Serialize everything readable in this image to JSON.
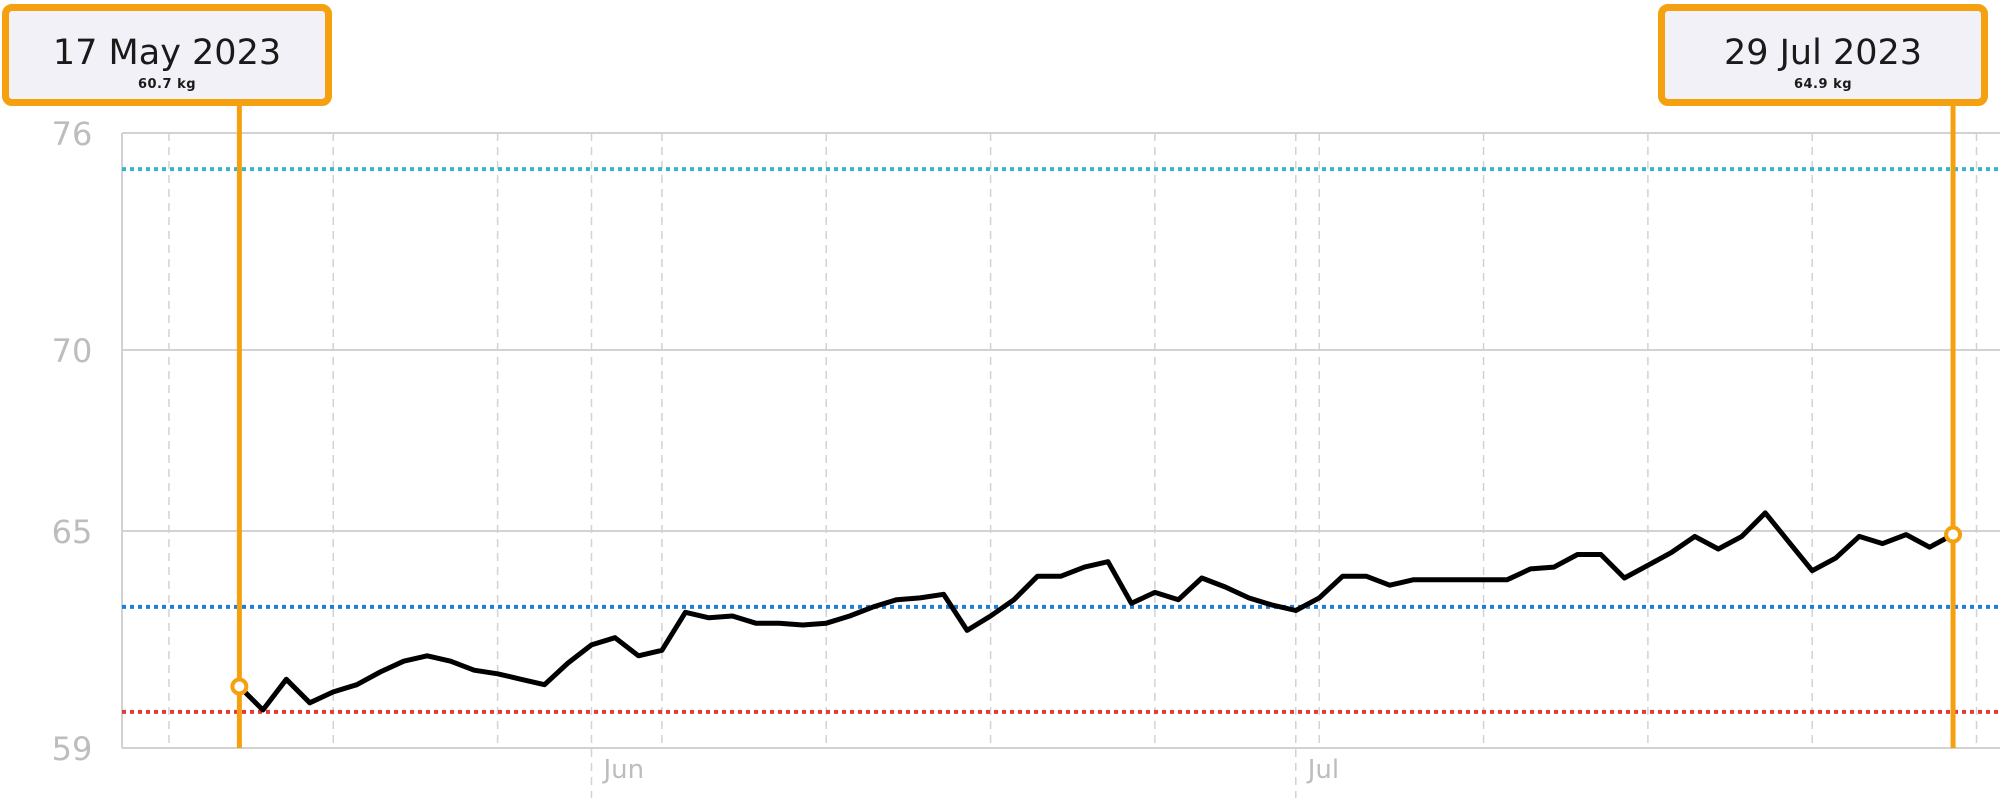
{
  "colors": {
    "accent": "#f5a00f",
    "line": "#000000",
    "grid": "#d2d2d2",
    "axis_text": "#bdbdbd",
    "ref_upper": "#3ab3c9",
    "ref_mid": "#1f7fd6",
    "ref_lower": "#e03c3c"
  },
  "selection": {
    "start": {
      "date": "17 May 2023",
      "value": "60.7 kg"
    },
    "end": {
      "date": "29 Jul 2023",
      "value": "64.9 kg"
    }
  },
  "chart_data": {
    "type": "line",
    "x_unit": "date",
    "y_unit": "kg",
    "ylim": [
      59,
      76
    ],
    "y_ticks": [
      59,
      65,
      70,
      76
    ],
    "x_ticks": [
      {
        "label": "Jun",
        "date": "2023-06-01"
      },
      {
        "label": "Jul",
        "date": "2023-07-01"
      }
    ],
    "reference_lines": [
      {
        "color": "ref_upper",
        "y": 75.0
      },
      {
        "color": "ref_mid",
        "y": 62.9
      },
      {
        "color": "ref_lower",
        "y": 60.0
      }
    ],
    "series": [
      {
        "x": [
          "2023-05-17",
          "2023-05-18",
          "2023-05-19",
          "2023-05-20",
          "2023-05-21",
          "2023-05-22",
          "2023-05-23",
          "2023-05-24",
          "2023-05-25",
          "2023-05-26",
          "2023-05-27",
          "2023-05-28",
          "2023-05-29",
          "2023-05-30",
          "2023-05-31",
          "2023-06-01",
          "2023-06-02",
          "2023-06-03",
          "2023-06-04",
          "2023-06-05",
          "2023-06-06",
          "2023-06-07",
          "2023-06-08",
          "2023-06-09",
          "2023-06-10",
          "2023-06-11",
          "2023-06-12",
          "2023-06-13",
          "2023-06-14",
          "2023-06-15",
          "2023-06-16",
          "2023-06-17",
          "2023-06-18",
          "2023-06-19",
          "2023-06-20",
          "2023-06-21",
          "2023-06-22",
          "2023-06-23",
          "2023-06-24",
          "2023-06-25",
          "2023-06-26",
          "2023-06-27",
          "2023-06-28",
          "2023-06-29",
          "2023-06-30",
          "2023-07-01",
          "2023-07-02",
          "2023-07-03",
          "2023-07-04",
          "2023-07-05",
          "2023-07-06",
          "2023-07-07",
          "2023-07-08",
          "2023-07-09",
          "2023-07-10",
          "2023-07-11",
          "2023-07-12",
          "2023-07-13",
          "2023-07-14",
          "2023-07-15",
          "2023-07-16",
          "2023-07-17",
          "2023-07-18",
          "2023-07-19",
          "2023-07-20",
          "2023-07-21",
          "2023-07-22",
          "2023-07-23",
          "2023-07-24",
          "2023-07-25",
          "2023-07-26",
          "2023-07-27",
          "2023-07-28",
          "2023-07-29"
        ],
        "y": [
          60.7,
          60.05,
          60.9,
          60.25,
          60.55,
          60.75,
          61.1,
          61.4,
          61.55,
          61.4,
          61.15,
          61.05,
          60.9,
          60.75,
          61.35,
          61.85,
          62.05,
          61.55,
          61.7,
          62.75,
          62.6,
          62.65,
          62.45,
          62.45,
          62.4,
          62.45,
          62.65,
          62.9,
          63.1,
          63.15,
          63.25,
          62.25,
          62.65,
          63.1,
          63.75,
          63.75,
          64.0,
          64.15,
          63.0,
          63.3,
          63.1,
          63.7,
          63.45,
          63.15,
          62.95,
          62.8,
          63.15,
          63.75,
          63.75,
          63.5,
          63.65,
          63.65,
          63.65,
          63.65,
          63.65,
          63.95,
          64.0,
          64.35,
          64.35,
          63.7,
          64.05,
          64.4,
          64.85,
          64.5,
          64.85,
          65.5,
          64.7,
          63.9,
          64.25,
          64.85,
          64.65,
          64.9,
          64.55,
          64.9
        ]
      }
    ]
  }
}
